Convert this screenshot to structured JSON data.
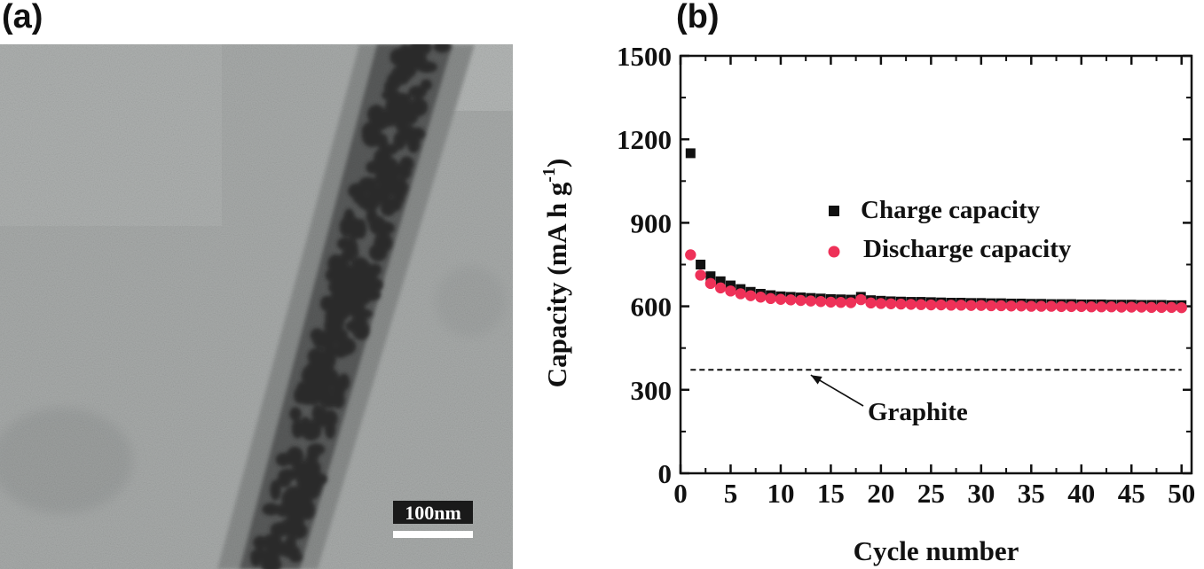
{
  "panels": {
    "a_label": "(a)",
    "b_label": "(b)"
  },
  "micrograph": {
    "scale_bar_text": "100nm"
  },
  "chart_data": {
    "type": "scatter",
    "xlabel": "Cycle number",
    "ylabel": "Capacity (mA h g",
    "ylabel_superscript": "-1",
    "ylabel_close": ")",
    "xlim": [
      0,
      51
    ],
    "ylim": [
      0,
      1500
    ],
    "x_ticks": [
      0,
      5,
      10,
      15,
      20,
      25,
      30,
      35,
      40,
      45,
      50
    ],
    "y_ticks": [
      0,
      300,
      600,
      900,
      1200,
      1500
    ],
    "grid": false,
    "legend_position": "center-right",
    "series": [
      {
        "name": "Charge capacity",
        "marker": "square",
        "color": "#111111",
        "x": [
          1,
          2,
          3,
          4,
          5,
          6,
          7,
          8,
          9,
          10,
          11,
          12,
          13,
          14,
          15,
          16,
          17,
          18,
          19,
          20,
          21,
          22,
          23,
          24,
          25,
          26,
          27,
          28,
          29,
          30,
          31,
          32,
          33,
          34,
          35,
          36,
          37,
          38,
          39,
          40,
          41,
          42,
          43,
          44,
          45,
          46,
          47,
          48,
          49,
          50
        ],
        "y": [
          1150,
          750,
          708,
          690,
          675,
          662,
          652,
          645,
          640,
          636,
          634,
          632,
          630,
          628,
          626,
          625,
          624,
          634,
          622,
          620,
          618,
          617,
          616,
          616,
          615,
          614,
          613,
          613,
          612,
          612,
          611,
          611,
          610,
          610,
          609,
          609,
          608,
          608,
          608,
          607,
          607,
          607,
          606,
          606,
          606,
          605,
          605,
          605,
          604,
          604
        ]
      },
      {
        "name": "Discharge capacity",
        "marker": "circle",
        "color": "#ee3158",
        "x": [
          1,
          2,
          3,
          4,
          5,
          6,
          7,
          8,
          9,
          10,
          11,
          12,
          13,
          14,
          15,
          16,
          17,
          18,
          19,
          20,
          21,
          22,
          23,
          24,
          25,
          26,
          27,
          28,
          29,
          30,
          31,
          32,
          33,
          34,
          35,
          36,
          37,
          38,
          39,
          40,
          41,
          42,
          43,
          44,
          45,
          46,
          47,
          48,
          49,
          50
        ],
        "y": [
          785,
          712,
          682,
          666,
          655,
          645,
          638,
          633,
          628,
          625,
          623,
          621,
          619,
          617,
          615,
          614,
          613,
          624,
          612,
          610,
          609,
          608,
          607,
          606,
          605,
          605,
          604,
          604,
          603,
          603,
          602,
          602,
          601,
          601,
          600,
          600,
          600,
          599,
          599,
          599,
          598,
          598,
          598,
          597,
          597,
          597,
          596,
          596,
          596,
          595
        ]
      }
    ],
    "reference_line": {
      "value": 372,
      "x_start": 1,
      "x_end": 50,
      "style": "dashed",
      "label": "Graphite"
    }
  }
}
